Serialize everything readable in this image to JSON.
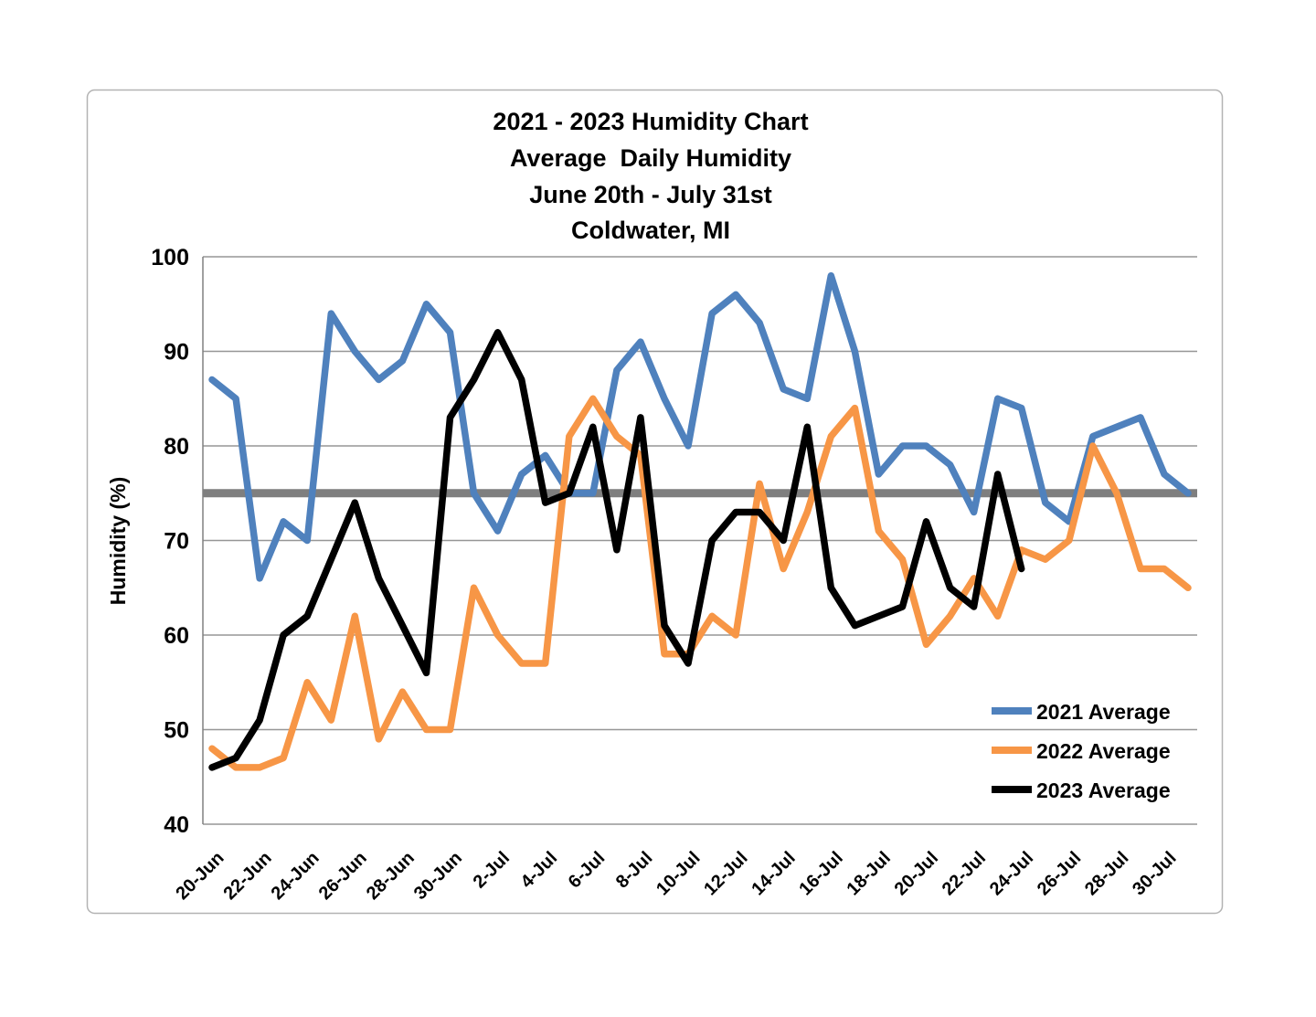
{
  "page": {
    "background": "#ffffff"
  },
  "chart_data": {
    "type": "line",
    "title_lines": [
      "2021 - 2023 Humidity Chart",
      "Average  Daily Humidity",
      "June 20th - July 31st",
      "Coldwater, MI"
    ],
    "xlabel": "",
    "ylabel": "Humidity (%)",
    "ylim": [
      40,
      100
    ],
    "y_ticks": [
      40,
      50,
      60,
      70,
      80,
      90,
      100
    ],
    "grid": "horizontal",
    "x_tick_labels": [
      "20-Jun",
      "22-Jun",
      "24-Jun",
      "26-Jun",
      "28-Jun",
      "30-Jun",
      "2-Jul",
      "4-Jul",
      "6-Jul",
      "8-Jul",
      "10-Jul",
      "12-Jul",
      "14-Jul",
      "16-Jul",
      "18-Jul",
      "20-Jul",
      "22-Jul",
      "24-Jul",
      "26-Jul",
      "28-Jul",
      "30-Jul"
    ],
    "categories": [
      "20-Jun",
      "21-Jun",
      "22-Jun",
      "23-Jun",
      "24-Jun",
      "25-Jun",
      "26-Jun",
      "27-Jun",
      "28-Jun",
      "29-Jun",
      "30-Jun",
      "1-Jul",
      "2-Jul",
      "3-Jul",
      "4-Jul",
      "5-Jul",
      "6-Jul",
      "7-Jul",
      "8-Jul",
      "9-Jul",
      "10-Jul",
      "11-Jul",
      "12-Jul",
      "13-Jul",
      "14-Jul",
      "15-Jul",
      "16-Jul",
      "17-Jul",
      "18-Jul",
      "19-Jul",
      "20-Jul",
      "21-Jul",
      "22-Jul",
      "23-Jul",
      "24-Jul",
      "25-Jul",
      "26-Jul",
      "27-Jul",
      "28-Jul",
      "29-Jul",
      "30-Jul",
      "31-Jul"
    ],
    "reference_line": {
      "value": 75,
      "color": "#7f7f7f"
    },
    "legend_position": "inside lower right",
    "series": [
      {
        "name": "2021 Average",
        "color": "#4f81bd",
        "values": [
          87,
          85,
          66,
          72,
          70,
          94,
          90,
          87,
          89,
          95,
          92,
          75,
          71,
          77,
          79,
          75,
          75,
          88,
          91,
          85,
          80,
          94,
          96,
          93,
          86,
          85,
          98,
          90,
          77,
          80,
          80,
          78,
          73,
          85,
          84,
          74,
          72,
          81,
          82,
          83,
          77,
          75
        ]
      },
      {
        "name": "2022 Average",
        "color": "#f79646",
        "values": [
          48,
          46,
          46,
          47,
          55,
          51,
          62,
          49,
          54,
          50,
          50,
          65,
          60,
          57,
          57,
          81,
          85,
          81,
          79,
          58,
          58,
          62,
          60,
          76,
          67,
          73,
          81,
          84,
          71,
          68,
          59,
          62,
          66,
          62,
          69,
          68,
          70,
          80,
          75,
          67,
          67,
          65
        ]
      },
      {
        "name": "2023 Average",
        "color": "#000000",
        "values": [
          46,
          47,
          51,
          60,
          62,
          68,
          74,
          66,
          61,
          56,
          83,
          87,
          92,
          87,
          74,
          75,
          82,
          69,
          83,
          61,
          57,
          70,
          73,
          73,
          70,
          82,
          65,
          61,
          62,
          63,
          72,
          65,
          63,
          77,
          67,
          null,
          null,
          null,
          null,
          null,
          null,
          null
        ]
      }
    ]
  }
}
